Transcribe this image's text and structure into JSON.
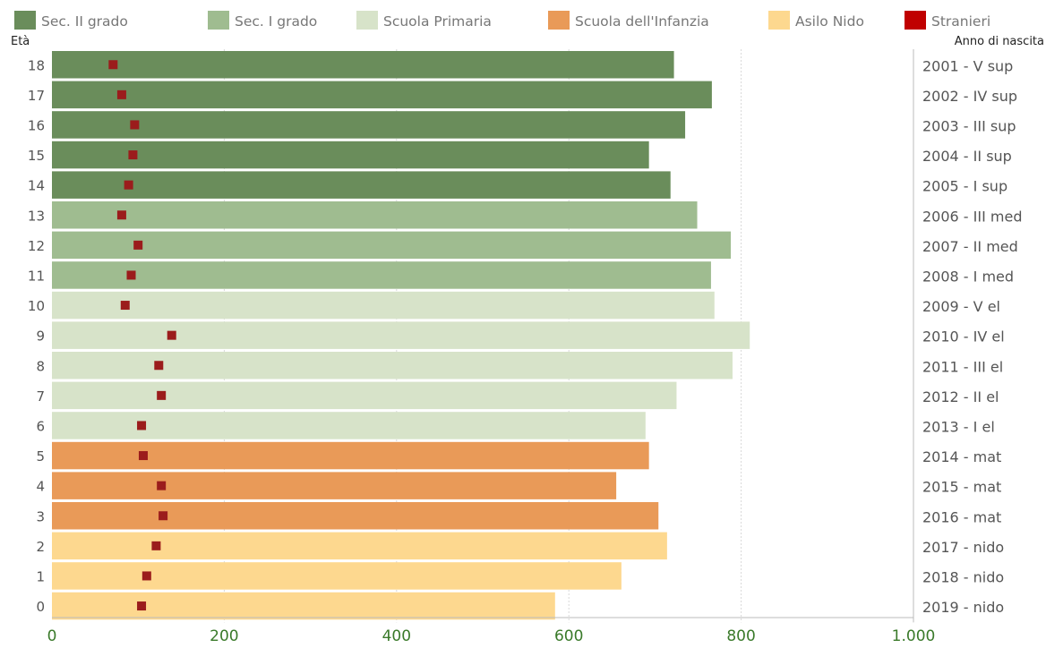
{
  "chart_data": {
    "type": "bar",
    "orientation": "horizontal",
    "ylabel_left": "Età",
    "ylabel_right": "Anno di nascita",
    "xlim": [
      0,
      1000
    ],
    "x_ticks": [
      0,
      200,
      400,
      600,
      800,
      1000
    ],
    "x_tick_labels": [
      "0",
      "200",
      "400",
      "600",
      "800",
      "1.000"
    ],
    "legend": [
      {
        "name": "Sec. II grado",
        "color": "#6a8d5b"
      },
      {
        "name": "Sec. I grado",
        "color": "#9fbc90"
      },
      {
        "name": "Scuola Primaria",
        "color": "#d7e3c9"
      },
      {
        "name": "Scuola dell'Infanzia",
        "color": "#e99a58"
      },
      {
        "name": "Asilo Nido",
        "color": "#fdd88f"
      },
      {
        "name": "Stranieri",
        "color": "#c00000"
      }
    ],
    "marker_color": "#9b1c1c",
    "rows": [
      {
        "age": "18",
        "year": "2001 - V sup",
        "group": 0,
        "total": 722,
        "stranieri": 71
      },
      {
        "age": "17",
        "year": "2002 - IV sup",
        "group": 0,
        "total": 766,
        "stranieri": 81
      },
      {
        "age": "16",
        "year": "2003 - III sup",
        "group": 0,
        "total": 735,
        "stranieri": 96
      },
      {
        "age": "15",
        "year": "2004 - II sup",
        "group": 0,
        "total": 693,
        "stranieri": 94
      },
      {
        "age": "14",
        "year": "2005 - I sup",
        "group": 0,
        "total": 718,
        "stranieri": 89
      },
      {
        "age": "13",
        "year": "2006 - III med",
        "group": 1,
        "total": 749,
        "stranieri": 81
      },
      {
        "age": "12",
        "year": "2007 - II med",
        "group": 1,
        "total": 788,
        "stranieri": 100
      },
      {
        "age": "11",
        "year": "2008 - I med",
        "group": 1,
        "total": 765,
        "stranieri": 92
      },
      {
        "age": "10",
        "year": "2009 - V el",
        "group": 2,
        "total": 769,
        "stranieri": 85
      },
      {
        "age": "9",
        "year": "2010 - IV el",
        "group": 2,
        "total": 810,
        "stranieri": 139
      },
      {
        "age": "8",
        "year": "2011 - III el",
        "group": 2,
        "total": 790,
        "stranieri": 124
      },
      {
        "age": "7",
        "year": "2012 - II el",
        "group": 2,
        "total": 725,
        "stranieri": 127
      },
      {
        "age": "6",
        "year": "2013 - I el",
        "group": 2,
        "total": 689,
        "stranieri": 104
      },
      {
        "age": "5",
        "year": "2014 - mat",
        "group": 3,
        "total": 693,
        "stranieri": 106
      },
      {
        "age": "4",
        "year": "2015 - mat",
        "group": 3,
        "total": 655,
        "stranieri": 127
      },
      {
        "age": "3",
        "year": "2016 - mat",
        "group": 3,
        "total": 704,
        "stranieri": 129
      },
      {
        "age": "2",
        "year": "2017 - nido",
        "group": 4,
        "total": 714,
        "stranieri": 121
      },
      {
        "age": "1",
        "year": "2018 - nido",
        "group": 4,
        "total": 661,
        "stranieri": 110
      },
      {
        "age": "0",
        "year": "2019 - nido",
        "group": 4,
        "total": 584,
        "stranieri": 104
      }
    ]
  }
}
